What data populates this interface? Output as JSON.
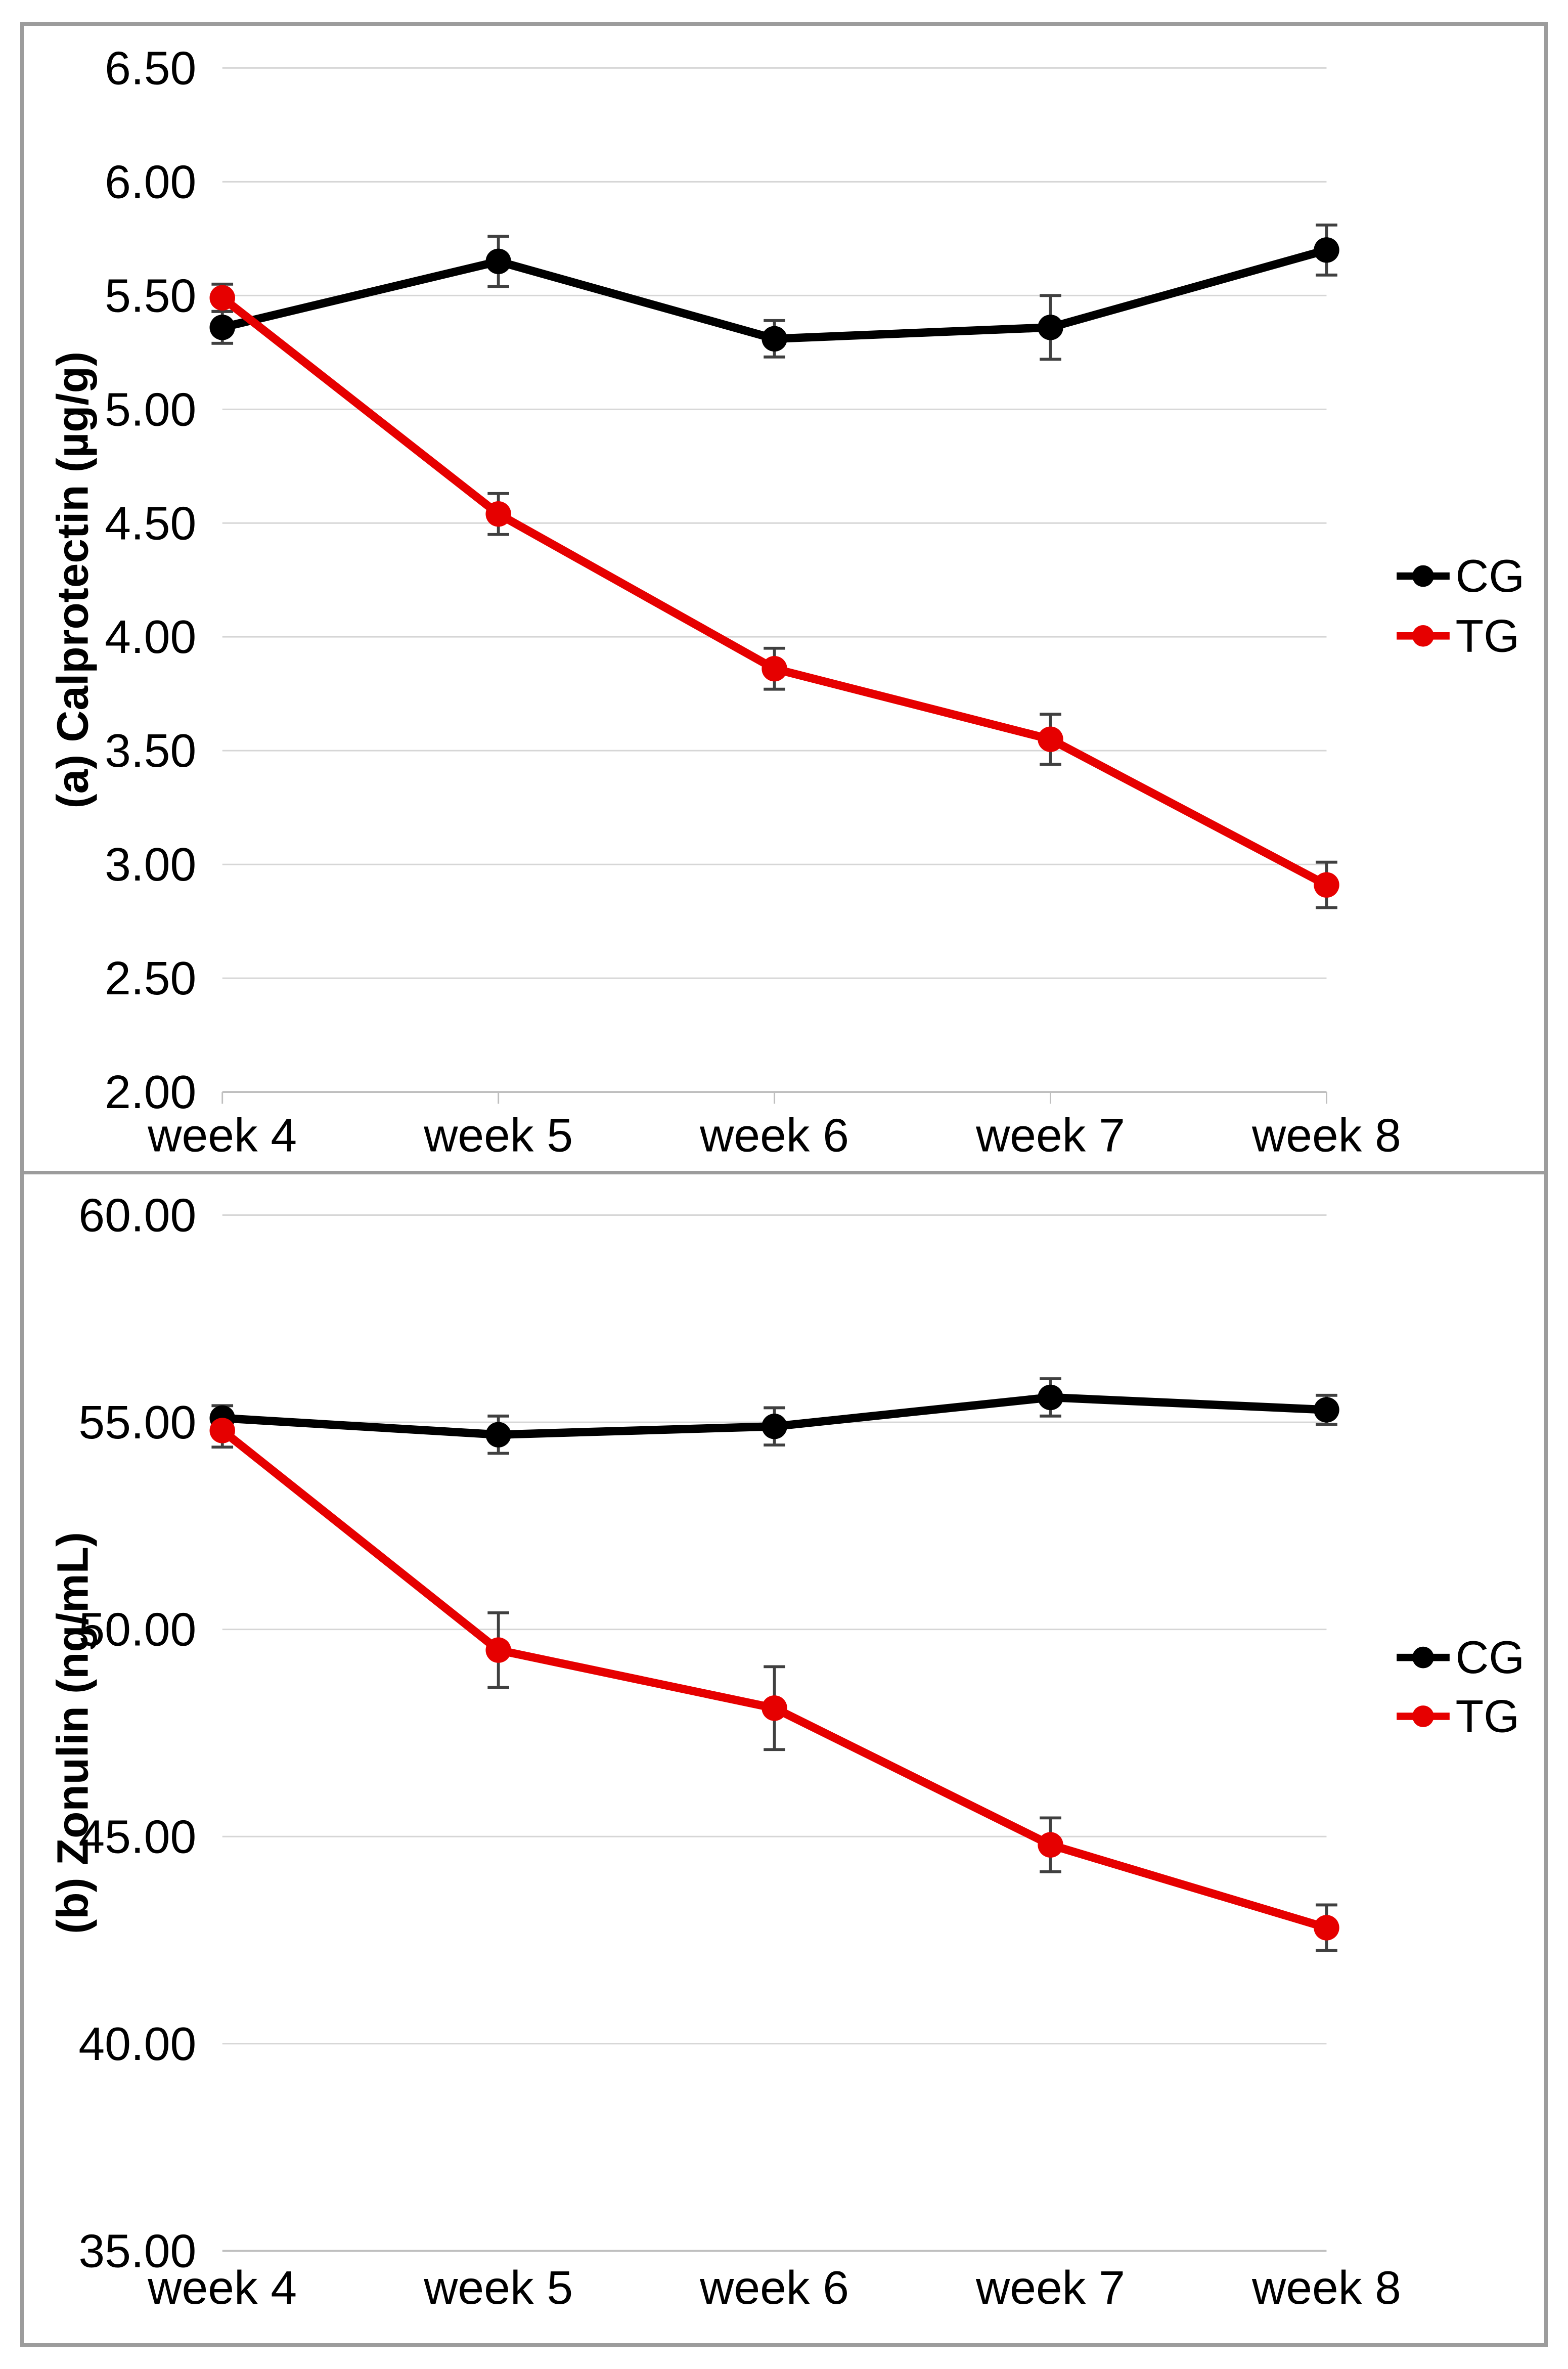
{
  "figure": {
    "background": "#ffffff",
    "border_color": "#9c9c9c"
  },
  "colors": {
    "cg_series": "#000000",
    "tg_series": "#e60000",
    "gridline": "#d6d6d6",
    "axis_line": "#bfbfbf",
    "error_bar": "#404040",
    "text": "#000000"
  },
  "legend": {
    "items": [
      {
        "label": "CG",
        "color": "#000000"
      },
      {
        "label": "TG",
        "color": "#e60000"
      }
    ],
    "position": "right"
  },
  "chart_data": [
    {
      "id": "a",
      "type": "line",
      "title": "",
      "ylabel": "(a) Calprotectin (µg/g)",
      "xlabel": "",
      "categories": [
        "week 4",
        "week 5",
        "week 6",
        "week 7",
        "week 8"
      ],
      "ylim": [
        2.0,
        6.5
      ],
      "ytick_step": 0.5,
      "ytick_decimals": 2,
      "ytick_labels": [
        "6.50",
        "6.00",
        "5.50",
        "5.00",
        "4.50",
        "4.00",
        "3.50",
        "3.00",
        "2.50",
        "2.00"
      ],
      "grid": true,
      "legend_position": "right",
      "error_bars": true,
      "series": [
        {
          "name": "CG",
          "color": "#000000",
          "values": [
            5.36,
            5.65,
            5.31,
            5.36,
            5.7
          ],
          "errors": [
            0.07,
            0.11,
            0.08,
            0.14,
            0.11
          ]
        },
        {
          "name": "TG",
          "color": "#e60000",
          "values": [
            5.49,
            4.54,
            3.86,
            3.55,
            2.91
          ],
          "errors": [
            0.06,
            0.09,
            0.09,
            0.11,
            0.1
          ]
        }
      ]
    },
    {
      "id": "b",
      "type": "line",
      "title": "",
      "ylabel": "(b) Zonulin (ng/mL)",
      "xlabel": "",
      "categories": [
        "week 4",
        "week 5",
        "week 6",
        "week 7",
        "week 8"
      ],
      "ylim": [
        35.0,
        60.0
      ],
      "ytick_step": 5.0,
      "ytick_decimals": 2,
      "ytick_labels": [
        "60.00",
        "55.00",
        "50.00",
        "45.00",
        "40.00",
        "35.00"
      ],
      "grid": true,
      "legend_position": "right",
      "error_bars": true,
      "series": [
        {
          "name": "CG",
          "color": "#000000",
          "values": [
            55.1,
            54.7,
            54.9,
            55.6,
            55.3
          ],
          "errors": [
            0.3,
            0.45,
            0.45,
            0.45,
            0.35
          ]
        },
        {
          "name": "TG",
          "color": "#e60000",
          "values": [
            54.8,
            49.5,
            48.1,
            44.8,
            42.8
          ],
          "errors": [
            0.4,
            0.9,
            1.0,
            0.65,
            0.55
          ]
        }
      ]
    }
  ]
}
